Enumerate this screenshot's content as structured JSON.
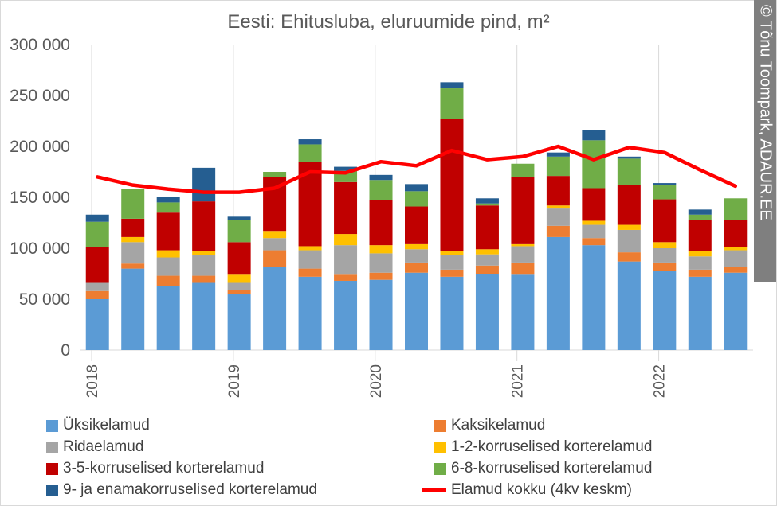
{
  "chart_data": {
    "type": "bar",
    "stacked": true,
    "title": "Eesti: Ehitusluba, eluruumide pind, m²",
    "credit": "© Tõnu Toompark, ADAUR.EE",
    "y_ticks": [
      "0",
      "50 000",
      "100 000",
      "150 000",
      "200 000",
      "250 000",
      "300 000"
    ],
    "ylim": [
      0,
      300000
    ],
    "x_year_labels": [
      "2018",
      "2019",
      "2020",
      "2021",
      "2022"
    ],
    "grid": "vertical-year-lines",
    "legend_position": "bottom",
    "categories": [
      "2018Q1",
      "2018Q2",
      "2018Q3",
      "2018Q4",
      "2019Q1",
      "2019Q2",
      "2019Q3",
      "2019Q4",
      "2020Q1",
      "2020Q2",
      "2020Q3",
      "2020Q4",
      "2021Q1",
      "2021Q2",
      "2021Q3",
      "2021Q4",
      "2022Q1",
      "2022Q2",
      "2022Q3"
    ],
    "series": [
      {
        "name": "Üksikelamud",
        "color": "#5b9bd5",
        "values": [
          50000,
          80000,
          63000,
          66000,
          55000,
          82000,
          72000,
          68000,
          69000,
          76000,
          72000,
          75000,
          74000,
          111000,
          103000,
          87000,
          78000,
          72000,
          76000
        ]
      },
      {
        "name": "Kaksikelamud",
        "color": "#ed7d31",
        "values": [
          8000,
          5000,
          10000,
          7000,
          4000,
          16000,
          8000,
          6000,
          7000,
          10000,
          7000,
          8000,
          12000,
          11000,
          7000,
          9000,
          8000,
          7000,
          6000
        ]
      },
      {
        "name": "Ridaelamud",
        "color": "#a5a5a5",
        "values": [
          8000,
          21000,
          18000,
          20000,
          7000,
          12000,
          18000,
          29000,
          19000,
          13000,
          14000,
          11000,
          16000,
          17000,
          13000,
          22000,
          14000,
          13000,
          16000
        ]
      },
      {
        "name": "1-2-korruselised korterelamud",
        "color": "#ffc000",
        "values": [
          0,
          5000,
          7000,
          4000,
          8000,
          7000,
          4000,
          11000,
          8000,
          5000,
          4000,
          5000,
          2000,
          3000,
          4000,
          5000,
          6000,
          5000,
          3000
        ]
      },
      {
        "name": "3-5-korruselised korterelamud",
        "color": "#c00000",
        "values": [
          35000,
          18000,
          37000,
          49000,
          32000,
          53000,
          83000,
          51000,
          44000,
          37000,
          130000,
          43000,
          66000,
          29000,
          32000,
          39000,
          42000,
          31000,
          27000
        ]
      },
      {
        "name": "6-8-korruselised korterelamud",
        "color": "#70ad47",
        "values": [
          25000,
          29000,
          10000,
          0,
          22000,
          5000,
          17000,
          11000,
          20000,
          15000,
          30000,
          2000,
          13000,
          19000,
          47000,
          26000,
          14000,
          5000,
          21000
        ]
      },
      {
        "name": "9- ja enamakorruselised korterelamud",
        "color": "#255e91",
        "values": [
          7000,
          0,
          5000,
          33000,
          3000,
          0,
          5000,
          4000,
          5000,
          7000,
          6000,
          5000,
          0,
          4000,
          10000,
          2000,
          2000,
          5000,
          0
        ]
      }
    ],
    "line_series": {
      "name": "Elamud kokku (4kv keskm)",
      "color": "#ff0000",
      "values": [
        170000,
        162000,
        158000,
        155000,
        155000,
        159000,
        175000,
        174000,
        185000,
        181000,
        196000,
        187000,
        190000,
        200000,
        187000,
        199000,
        194000,
        177000,
        161000
      ]
    }
  }
}
